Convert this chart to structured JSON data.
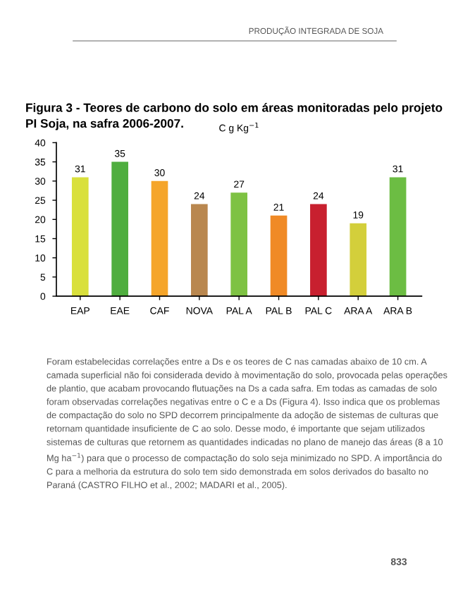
{
  "chart_data": {
    "type": "bar",
    "title": "Figura 3 - Teores de carbono do solo em áreas monitoradas pelo projeto PI Soja, na safra 2006-2007.",
    "ylabel": "C g Kg$^{−1}$",
    "categories": [
      "EAP",
      "EAE",
      "CAF",
      "NOVA",
      "PAL A",
      "PAL B",
      "PAL C",
      "ARA A",
      "ARA B"
    ],
    "values": [
      31,
      35,
      30,
      24,
      27,
      21,
      24,
      19,
      31
    ],
    "colors": [
      "#d9e03c",
      "#4fae3f",
      "#f5a52a",
      "#b9874f",
      "#7ec243",
      "#f08a26",
      "#c8202f",
      "#d3cf3b",
      "#6cbd43"
    ],
    "ylim": [
      0,
      40
    ],
    "yticks": [
      0,
      5,
      10,
      15,
      20,
      25,
      30,
      35,
      40
    ],
    "data_labels": true,
    "grid": false,
    "legend": false,
    "annotations": [
      "PRODUÇÃO INTEGRADA DE SOJA",
      "Foram estabelecidas correlações entre a Ds e os teores de C nas camadas abaixo de 10 cm. A camada superficial não foi considerada devido à movimentação do solo, provocada pelas operações de plantio, que acabam provocando flutuações na Ds a cada safra. Em todas as camadas de solo foram observadas correlações negativas entre o C e a Ds (Figura 4). Isso indica que os problemas de compactação do solo no SPD decorrem principalmente da adoção de sistemas de culturas que retornam quantidade insuficiente de C ao solo. Desse modo, é importante que sejam utilizados sistemas de culturas que retornem as quantidades indicadas no plano de manejo das áreas (8 a 10 Mg ha$^{−1}$) para que o processo de compactação do solo seja minimizado no SPD. A importância do C para a melhoria da estrutura do solo tem sido demonstrada em solos derivados do basalto no Paraná (CASTRO FILHO et al., 2002; MADARI et al., 2005).",
      "833"
    ]
  }
}
